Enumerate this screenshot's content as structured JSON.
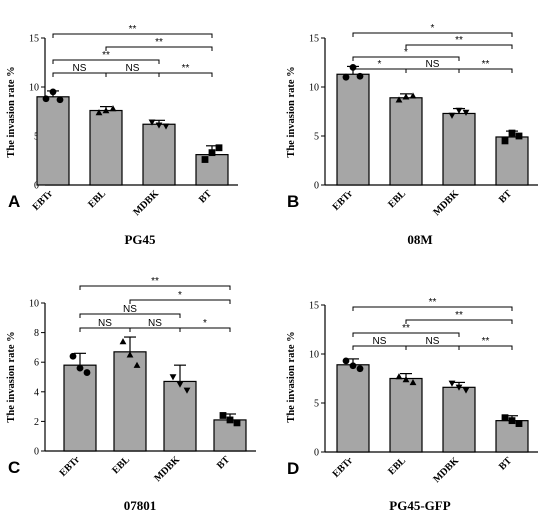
{
  "chart_data": [
    {
      "type": "bar",
      "panel_letter": "A",
      "title": "PG45",
      "ylabel": "The invasion rate %",
      "ylim": [
        0,
        15
      ],
      "yticks": [
        0,
        5,
        10,
        15
      ],
      "categories": [
        "EBTr",
        "EBL",
        "MDBK",
        "BT"
      ],
      "values": [
        9.0,
        7.6,
        6.2,
        3.1
      ],
      "errors": [
        0.6,
        0.4,
        0.4,
        0.9
      ],
      "points": [
        [
          8.8,
          9.5,
          8.7
        ],
        [
          7.4,
          7.6,
          7.8
        ],
        [
          6.4,
          6.1,
          6.0
        ],
        [
          2.6,
          3.3,
          3.8
        ]
      ],
      "comparisons": [
        {
          "from": "EBTr",
          "to": "BT",
          "label": "**"
        },
        {
          "from": "EBL",
          "to": "BT",
          "label": "**"
        },
        {
          "from": "EBTr",
          "to": "MDBK",
          "label": "**"
        },
        {
          "from": "EBTr",
          "to": "EBL",
          "label": "NS"
        },
        {
          "from": "EBL",
          "to": "MDBK",
          "label": "NS"
        },
        {
          "from": "MDBK",
          "to": "BT",
          "label": "**"
        }
      ]
    },
    {
      "type": "bar",
      "panel_letter": "B",
      "title": "08M",
      "ylabel": "The invasion rate %",
      "ylim": [
        0,
        15
      ],
      "yticks": [
        0,
        5,
        10,
        15
      ],
      "categories": [
        "EBTr",
        "EBL",
        "MDBK",
        "BT"
      ],
      "values": [
        11.3,
        8.9,
        7.3,
        4.9
      ],
      "errors": [
        0.8,
        0.4,
        0.5,
        0.6
      ],
      "points": [
        [
          11.0,
          12.0,
          11.1
        ],
        [
          8.7,
          9.0,
          9.1
        ],
        [
          7.1,
          7.6,
          7.4
        ],
        [
          4.5,
          5.3,
          5.0
        ]
      ],
      "comparisons": [
        {
          "from": "EBTr",
          "to": "BT",
          "label": "*"
        },
        {
          "from": "EBL",
          "to": "BT",
          "label": "**"
        },
        {
          "from": "EBTr",
          "to": "MDBK",
          "label": "*"
        },
        {
          "from": "EBTr",
          "to": "EBL",
          "label": "*"
        },
        {
          "from": "EBL",
          "to": "MDBK",
          "label": "NS"
        },
        {
          "from": "MDBK",
          "to": "BT",
          "label": "**"
        }
      ]
    },
    {
      "type": "bar",
      "panel_letter": "C",
      "title": "07801",
      "ylabel": "The invasion rate %",
      "ylim": [
        0,
        10
      ],
      "yticks": [
        0,
        2,
        4,
        6,
        8,
        10
      ],
      "categories": [
        "EBTr",
        "EBL",
        "MDBK",
        "BT"
      ],
      "values": [
        5.8,
        6.7,
        4.7,
        2.1
      ],
      "errors": [
        0.8,
        1.0,
        1.1,
        0.4
      ],
      "points": [
        [
          6.4,
          5.6,
          5.3
        ],
        [
          7.4,
          6.5,
          5.8
        ],
        [
          5.0,
          4.5,
          4.1
        ],
        [
          2.4,
          2.1,
          1.9
        ]
      ],
      "comparisons": [
        {
          "from": "EBTr",
          "to": "BT",
          "label": "**"
        },
        {
          "from": "EBL",
          "to": "BT",
          "label": "*"
        },
        {
          "from": "EBTr",
          "to": "MDBK",
          "label": "NS"
        },
        {
          "from": "EBTr",
          "to": "EBL",
          "label": "NS"
        },
        {
          "from": "EBL",
          "to": "MDBK",
          "label": "NS"
        },
        {
          "from": "MDBK",
          "to": "BT",
          "label": "*"
        }
      ]
    },
    {
      "type": "bar",
      "panel_letter": "D",
      "title": "PG45-GFP",
      "ylabel": "The invasion rate %",
      "ylim": [
        0,
        15
      ],
      "yticks": [
        0,
        5,
        10,
        15
      ],
      "categories": [
        "EBTr",
        "EBL",
        "MDBK",
        "BT"
      ],
      "values": [
        8.9,
        7.5,
        6.6,
        3.2
      ],
      "errors": [
        0.6,
        0.5,
        0.5,
        0.5
      ],
      "points": [
        [
          9.3,
          8.8,
          8.5
        ],
        [
          7.7,
          7.4,
          7.1
        ],
        [
          7.0,
          6.6,
          6.3
        ],
        [
          3.5,
          3.2,
          2.9
        ]
      ],
      "comparisons": [
        {
          "from": "EBTr",
          "to": "BT",
          "label": "**"
        },
        {
          "from": "EBL",
          "to": "BT",
          "label": "**"
        },
        {
          "from": "EBTr",
          "to": "MDBK",
          "label": "**"
        },
        {
          "from": "EBTr",
          "to": "EBL",
          "label": "NS"
        },
        {
          "from": "EBL",
          "to": "MDBK",
          "label": "NS"
        },
        {
          "from": "MDBK",
          "to": "BT",
          "label": "**"
        }
      ]
    }
  ],
  "colors": {
    "bar_fill": "#a6a6a6",
    "bar_stroke": "#000000",
    "marker": "#000000"
  },
  "marker_shapes": [
    "circle",
    "triangle",
    "inverted-triangle",
    "square"
  ]
}
